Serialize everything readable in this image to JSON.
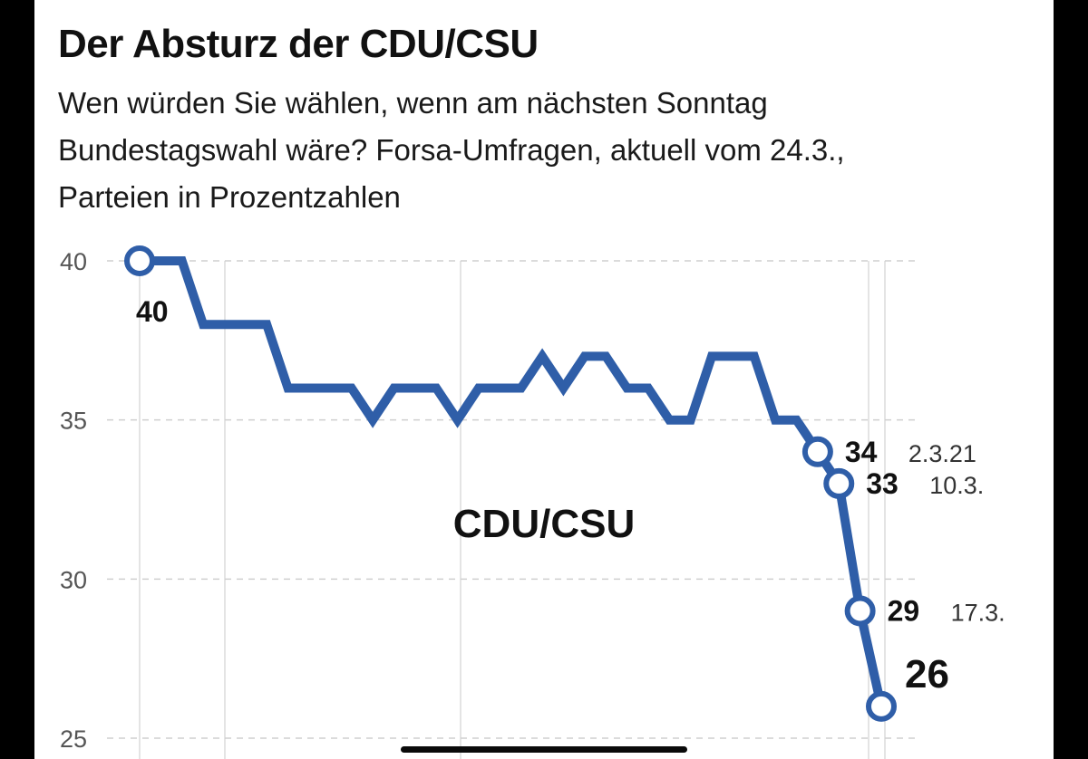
{
  "title": "Der Absturz der CDU/CSU",
  "subtitle": "Wen würden Sie wählen, wenn am nächsten Sonntag Bundestagswahl wäre? Forsa-Umfragen, aktuell vom 24.3., Parteien in Prozentzahlen",
  "chart_data": {
    "type": "line",
    "title": "Der Absturz der CDU/CSU",
    "series": [
      {
        "name": "CDU/CSU",
        "color": "#2f5ea8",
        "values": [
          40,
          40,
          40,
          38,
          38,
          38,
          38,
          36,
          36,
          36,
          36,
          35,
          36,
          36,
          36,
          35,
          36,
          36,
          36,
          37,
          36,
          37,
          37,
          36,
          36,
          35,
          35,
          37,
          37,
          37,
          35,
          35,
          34,
          33,
          29,
          26
        ]
      }
    ],
    "yticks": [
      40,
      35,
      30,
      25
    ],
    "ylim": [
      25,
      40
    ],
    "series_label": "CDU/CSU",
    "annotations": [
      {
        "index": 0,
        "value": "40",
        "date": ""
      },
      {
        "index": 32,
        "value": "34",
        "date": "2.3.21"
      },
      {
        "index": 33,
        "value": "33",
        "date": "10.3."
      },
      {
        "index": 34,
        "value": "29",
        "date": "17.3."
      },
      {
        "index": 35,
        "value": "26",
        "date": ""
      }
    ],
    "grid": true
  }
}
